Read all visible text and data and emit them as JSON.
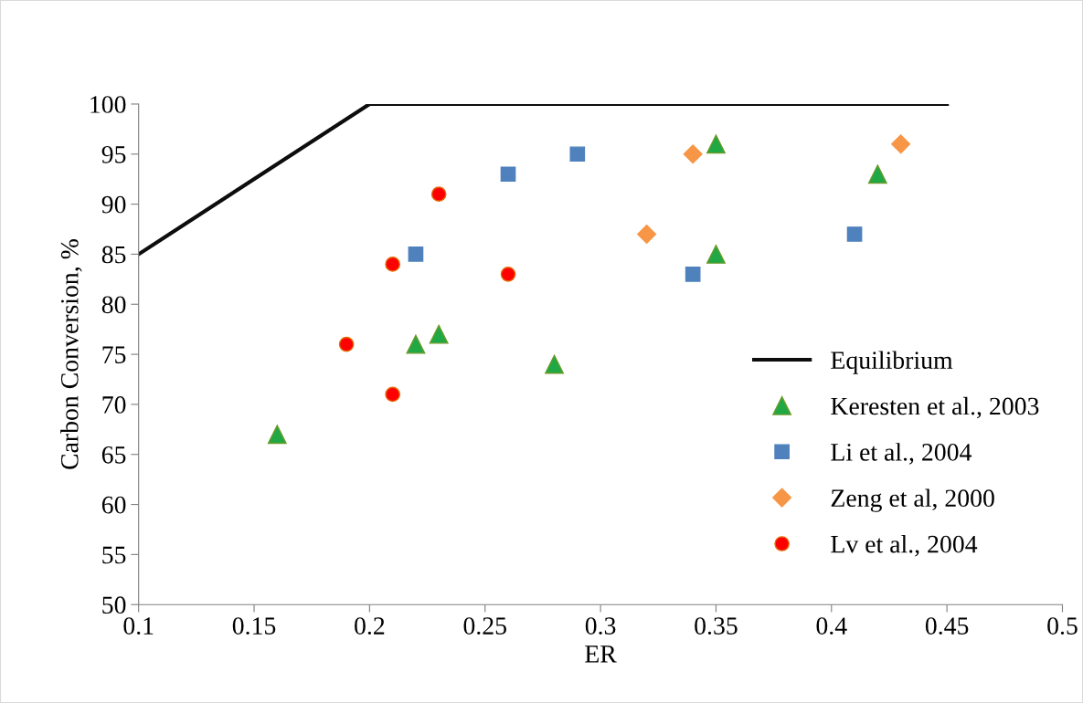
{
  "chart_data": {
    "type": "scatter",
    "xlabel": "ER",
    "ylabel": "Carbon Conversion, %",
    "xlim": [
      0.1,
      0.5
    ],
    "xticks": [
      0.1,
      0.15,
      0.2,
      0.25,
      0.3,
      0.35,
      0.4,
      0.45,
      0.5
    ],
    "ylim": [
      50,
      100
    ],
    "yticks": [
      50,
      55,
      60,
      65,
      70,
      75,
      80,
      85,
      90,
      95,
      100
    ],
    "grid": false,
    "legend": "right",
    "series": [
      {
        "name": "Equilibrium",
        "type": "line",
        "color": "#0d0d0d",
        "marker": "none",
        "line_style": "solid",
        "x": [
          0.1,
          0.2,
          0.45
        ],
        "values": [
          85,
          100,
          100
        ]
      },
      {
        "name": "Keresten et al., 2003",
        "color": "#1fa844",
        "marker": "triangle",
        "x": [
          0.16,
          0.22,
          0.23,
          0.28,
          0.35,
          0.35,
          0.42
        ],
        "values": [
          67,
          76,
          77,
          74,
          96,
          85,
          93
        ]
      },
      {
        "name": "Li et al., 2004",
        "color": "#4f81bd",
        "marker": "square",
        "x": [
          0.22,
          0.26,
          0.29,
          0.34,
          0.41
        ],
        "values": [
          85,
          93,
          95,
          83,
          87
        ]
      },
      {
        "name": "Zeng et al, 2000",
        "color": "#f79646",
        "marker": "diamond",
        "x": [
          0.32,
          0.34,
          0.43
        ],
        "values": [
          87,
          95,
          96
        ]
      },
      {
        "name": "Lv et al., 2004",
        "color": "#ff0000",
        "marker": "circle",
        "x": [
          0.19,
          0.21,
          0.21,
          0.23,
          0.26
        ],
        "values": [
          76,
          84,
          71,
          91,
          83
        ]
      }
    ]
  }
}
